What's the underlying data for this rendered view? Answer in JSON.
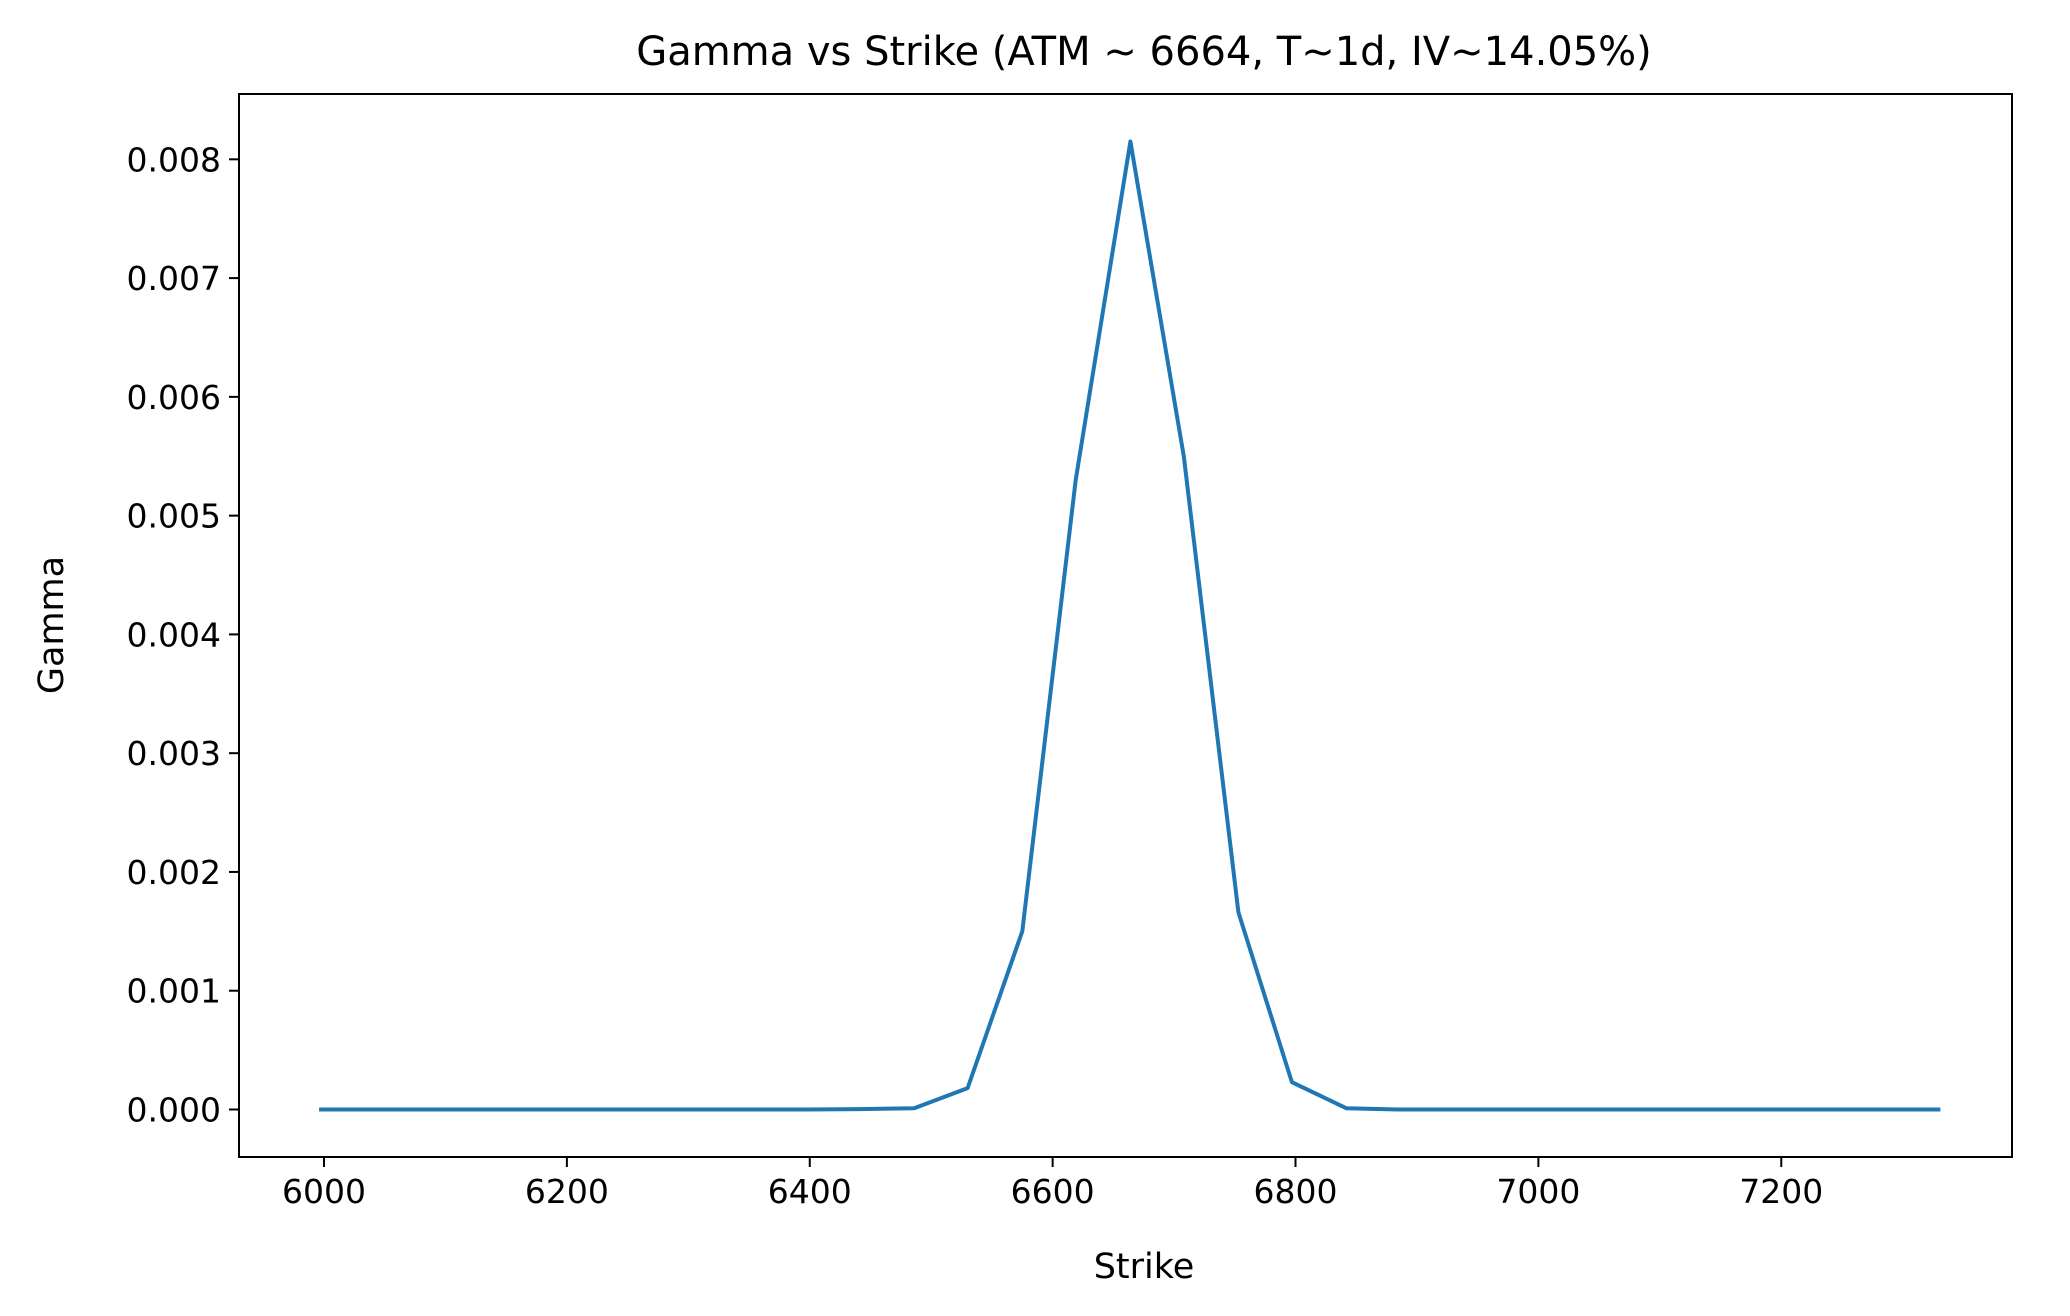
{
  "chart_data": {
    "type": "line",
    "title": "Gamma vs Strike (ATM ~ 6664, T~1d, IV~14.05%)",
    "xlabel": "Strike",
    "ylabel": "Gamma",
    "xlim": [
      5930,
      7390
    ],
    "ylim": [
      -0.0004,
      0.00855
    ],
    "x_ticks": [
      6000,
      6200,
      6400,
      6600,
      6800,
      7000,
      7200
    ],
    "x_tick_labels": [
      "6000",
      "6200",
      "6400",
      "6600",
      "6800",
      "7000",
      "7200"
    ],
    "y_ticks": [
      0.0,
      0.001,
      0.002,
      0.003,
      0.004,
      0.005,
      0.006,
      0.007,
      0.008
    ],
    "y_tick_labels": [
      "0.000",
      "0.001",
      "0.002",
      "0.003",
      "0.004",
      "0.005",
      "0.006",
      "0.007",
      "0.008"
    ],
    "grid": false,
    "series": [
      {
        "color": "#1f77b4",
        "x": [
          5996,
          6041,
          6085,
          6130,
          6174,
          6219,
          6263,
          6308,
          6352,
          6397,
          6441,
          6486,
          6530,
          6575,
          6619,
          6664,
          6708,
          6753,
          6797,
          6842,
          6886,
          6931,
          6975,
          7020,
          7064,
          7109,
          7153,
          7198,
          7242,
          7287,
          7331
        ],
        "y": [
          0.0,
          0.0,
          0.0,
          0.0,
          0.0,
          0.0,
          0.0,
          0.0,
          0.0,
          0.0,
          3e-06,
          1e-05,
          0.00018,
          0.0015,
          0.0053,
          0.00815,
          0.0055,
          0.00166,
          0.00023,
          1e-05,
          0.0,
          0.0,
          0.0,
          0.0,
          0.0,
          0.0,
          0.0,
          0.0,
          0.0,
          0.0,
          0.0
        ]
      }
    ]
  }
}
